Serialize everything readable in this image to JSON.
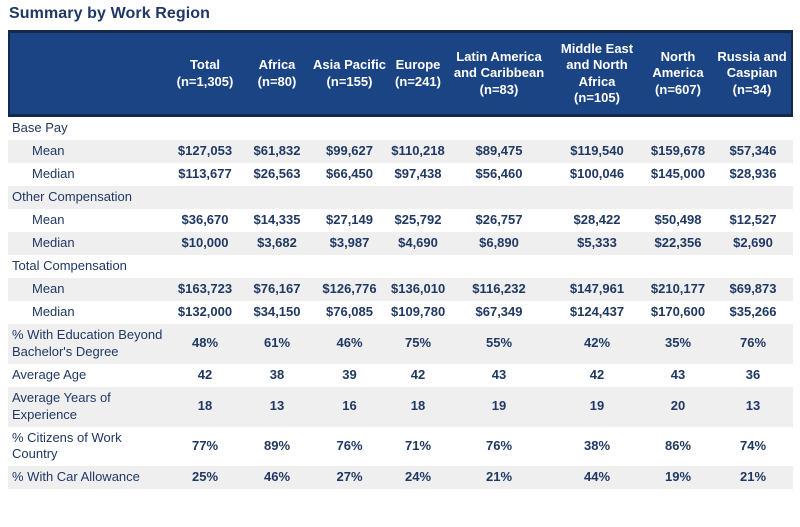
{
  "page_title": "Summary by Work Region",
  "colors": {
    "header_background": "#1b4484",
    "header_border": "#15294d",
    "text_navy": "#1f3864",
    "row_stripe": "#efefef"
  },
  "chart_data": {
    "type": "table",
    "title": "Summary by Work Region",
    "legend_position": "none",
    "grid": "row-striping",
    "columns": [
      {
        "label": "Total",
        "n": "(n=1,305)"
      },
      {
        "label": "Africa",
        "n": "(n=80)"
      },
      {
        "label": "Asia Pacific",
        "n": "(n=155)"
      },
      {
        "label": "Europe",
        "n": "(n=241)"
      },
      {
        "label": "Latin America and Caribbean",
        "n": "(n=83)"
      },
      {
        "label": "Middle East and North Africa",
        "n": "(n=105)"
      },
      {
        "label": "North America",
        "n": "(n=607)"
      },
      {
        "label": "Russia and Caspian",
        "n": "(n=34)"
      }
    ],
    "rows": [
      {
        "type": "section",
        "indent": false,
        "label": "Base Pay",
        "values": [
          "",
          "",
          "",
          "",
          "",
          "",
          "",
          ""
        ]
      },
      {
        "type": "data",
        "indent": true,
        "label": "Mean",
        "values": [
          "$127,053",
          "$61,832",
          "$99,627",
          "$110,218",
          "$89,475",
          "$119,540",
          "$159,678",
          "$57,346"
        ]
      },
      {
        "type": "data",
        "indent": true,
        "label": "Median",
        "values": [
          "$113,677",
          "$26,563",
          "$66,450",
          "$97,438",
          "$56,460",
          "$100,046",
          "$145,000",
          "$28,936"
        ]
      },
      {
        "type": "section",
        "indent": false,
        "label": "Other Compensation",
        "values": [
          "",
          "",
          "",
          "",
          "",
          "",
          "",
          ""
        ]
      },
      {
        "type": "data",
        "indent": true,
        "label": "Mean",
        "values": [
          "$36,670",
          "$14,335",
          "$27,149",
          "$25,792",
          "$26,757",
          "$28,422",
          "$50,498",
          "$12,527"
        ]
      },
      {
        "type": "data",
        "indent": true,
        "label": "Median",
        "values": [
          "$10,000",
          "$3,682",
          "$3,987",
          "$4,690",
          "$6,890",
          "$5,333",
          "$22,356",
          "$2,690"
        ]
      },
      {
        "type": "section",
        "indent": false,
        "label": "Total Compensation",
        "values": [
          "",
          "",
          "",
          "",
          "",
          "",
          "",
          ""
        ]
      },
      {
        "type": "data",
        "indent": true,
        "label": "Mean",
        "values": [
          "$163,723",
          "$76,167",
          "$126,776",
          "$136,010",
          "$116,232",
          "$147,961",
          "$210,177",
          "$69,873"
        ]
      },
      {
        "type": "data",
        "indent": true,
        "label": "Median",
        "values": [
          "$132,000",
          "$34,150",
          "$76,085",
          "$109,780",
          "$67,349",
          "$124,437",
          "$170,600",
          "$35,266"
        ]
      },
      {
        "type": "data",
        "indent": false,
        "label": "% With Education Beyond Bachelor's Degree",
        "values": [
          "48%",
          "61%",
          "46%",
          "75%",
          "55%",
          "42%",
          "35%",
          "76%"
        ]
      },
      {
        "type": "data",
        "indent": false,
        "label": "Average Age",
        "values": [
          "42",
          "38",
          "39",
          "42",
          "43",
          "42",
          "43",
          "36"
        ]
      },
      {
        "type": "data",
        "indent": false,
        "label": "Average Years of Experience",
        "values": [
          "18",
          "13",
          "16",
          "18",
          "19",
          "19",
          "20",
          "13"
        ]
      },
      {
        "type": "data",
        "indent": false,
        "label": "% Citizens of Work Country",
        "values": [
          "77%",
          "89%",
          "76%",
          "71%",
          "76%",
          "38%",
          "86%",
          "74%"
        ]
      },
      {
        "type": "data",
        "indent": false,
        "label": "% With Car Allowance",
        "values": [
          "25%",
          "46%",
          "27%",
          "24%",
          "21%",
          "44%",
          "19%",
          "21%"
        ]
      }
    ]
  }
}
